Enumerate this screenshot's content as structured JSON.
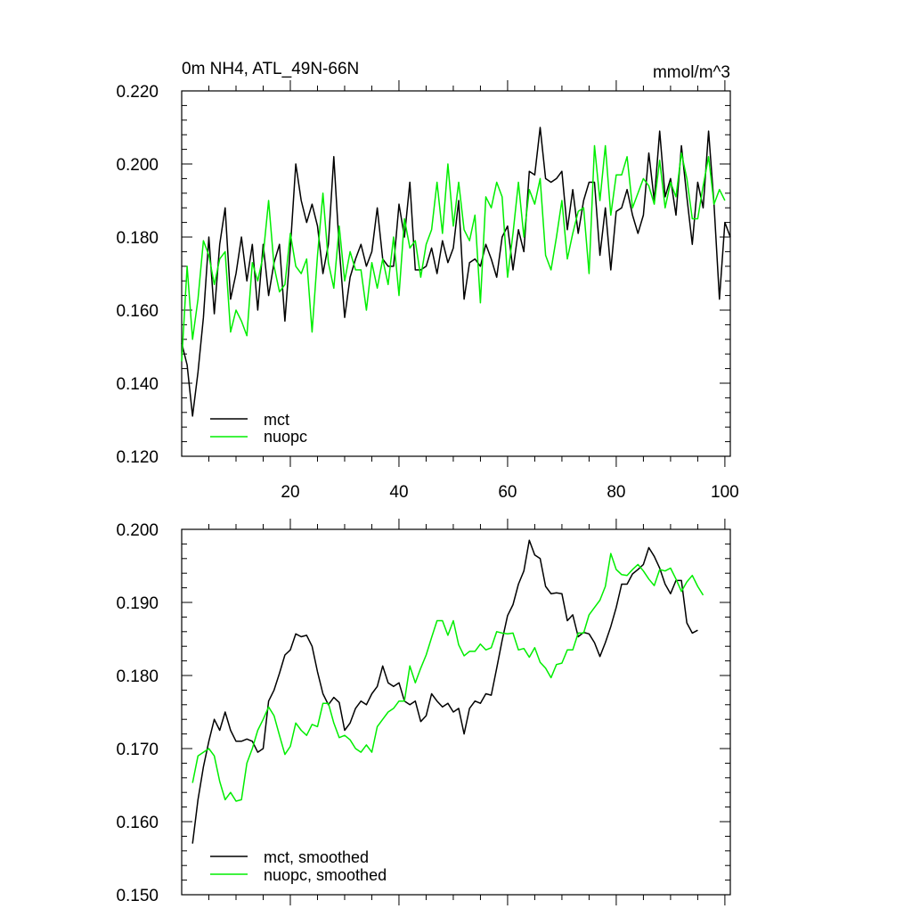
{
  "chart_data": [
    {
      "type": "line",
      "title": "0m NH4, ATL_49N-66N",
      "units": "mmol/m^3",
      "xlim": [
        0,
        101
      ],
      "ylim": [
        0.12,
        0.22
      ],
      "xticks": [
        20,
        40,
        60,
        80,
        100
      ],
      "xtick_labels": [
        "20",
        "40",
        "60",
        "80",
        "100"
      ],
      "yticks": [
        0.12,
        0.14,
        0.16,
        0.18,
        0.2,
        0.22
      ],
      "ytick_labels": [
        "0.120",
        "0.140",
        "0.160",
        "0.180",
        "0.200",
        "0.220"
      ],
      "legend_position": "bottom-left",
      "series": [
        {
          "name": "mct",
          "color": "#000000",
          "values": [
            0.151,
            0.145,
            0.131,
            0.143,
            0.158,
            0.18,
            0.159,
            0.178,
            0.188,
            0.163,
            0.17,
            0.18,
            0.168,
            0.178,
            0.16,
            0.178,
            0.164,
            0.173,
            0.178,
            0.157,
            0.177,
            0.2,
            0.19,
            0.184,
            0.189,
            0.183,
            0.17,
            0.178,
            0.202,
            0.177,
            0.158,
            0.169,
            0.174,
            0.178,
            0.172,
            0.176,
            0.188,
            0.174,
            0.172,
            0.172,
            0.189,
            0.18,
            0.195,
            0.171,
            0.171,
            0.172,
            0.177,
            0.17,
            0.179,
            0.173,
            0.177,
            0.19,
            0.163,
            0.173,
            0.174,
            0.172,
            0.178,
            0.174,
            0.169,
            0.18,
            0.183,
            0.171,
            0.182,
            0.176,
            0.198,
            0.197,
            0.21,
            0.196,
            0.195,
            0.196,
            0.198,
            0.182,
            0.193,
            0.181,
            0.19,
            0.195,
            0.195,
            0.175,
            0.188,
            0.171,
            0.187,
            0.188,
            0.193,
            0.186,
            0.181,
            0.186,
            0.203,
            0.19,
            0.209,
            0.191,
            0.196,
            0.186,
            0.205,
            0.191,
            0.178,
            0.195,
            0.188,
            0.209,
            0.189,
            0.163,
            0.184,
            0.18
          ]
        },
        {
          "name": "nuopc",
          "color": "#00ee00",
          "values": [
            0.146,
            0.172,
            0.152,
            0.163,
            0.179,
            0.175,
            0.167,
            0.174,
            0.176,
            0.154,
            0.16,
            0.157,
            0.153,
            0.173,
            0.168,
            0.175,
            0.19,
            0.172,
            0.165,
            0.167,
            0.181,
            0.172,
            0.17,
            0.174,
            0.154,
            0.175,
            0.192,
            0.173,
            0.166,
            0.183,
            0.168,
            0.176,
            0.171,
            0.171,
            0.16,
            0.173,
            0.166,
            0.174,
            0.167,
            0.18,
            0.164,
            0.185,
            0.177,
            0.179,
            0.169,
            0.178,
            0.182,
            0.195,
            0.181,
            0.2,
            0.183,
            0.195,
            0.182,
            0.179,
            0.186,
            0.162,
            0.191,
            0.188,
            0.195,
            0.191,
            0.169,
            0.181,
            0.195,
            0.18,
            0.193,
            0.189,
            0.196,
            0.175,
            0.171,
            0.18,
            0.19,
            0.174,
            0.181,
            0.187,
            0.188,
            0.17,
            0.205,
            0.19,
            0.205,
            0.186,
            0.197,
            0.197,
            0.202,
            0.188,
            0.192,
            0.196,
            0.194,
            0.189,
            0.201,
            0.188,
            0.195,
            0.191,
            0.203,
            0.196,
            0.185,
            0.185,
            0.194,
            0.202,
            0.189,
            0.193,
            0.19
          ]
        }
      ]
    },
    {
      "type": "line",
      "xlim": [
        0,
        101
      ],
      "ylim": [
        0.15,
        0.2
      ],
      "xticks": [
        20,
        40,
        60,
        80,
        100
      ],
      "yticks": [
        0.15,
        0.16,
        0.17,
        0.18,
        0.19,
        0.2
      ],
      "ytick_labels": [
        "0.150",
        "0.160",
        "0.170",
        "0.180",
        "0.190",
        "0.200"
      ],
      "legend_position": "bottom-left",
      "series": [
        {
          "name": "mct, smoothed",
          "color": "#000000",
          "values": [
            0.157,
            0.163,
            0.1675,
            0.171,
            0.174,
            0.1725,
            0.175,
            0.1725,
            0.171,
            0.171,
            0.1713,
            0.171,
            0.1695,
            0.17,
            0.1765,
            0.178,
            0.1803,
            0.1828,
            0.1835,
            0.1857,
            0.1853,
            0.1855,
            0.184,
            0.1805,
            0.1775,
            0.176,
            0.177,
            0.1763,
            0.1725,
            0.1735,
            0.1755,
            0.1765,
            0.176,
            0.1775,
            0.1785,
            0.1813,
            0.179,
            0.1785,
            0.179,
            0.1765,
            0.176,
            0.1765,
            0.1737,
            0.1745,
            0.1775,
            0.1765,
            0.1757,
            0.1762,
            0.175,
            0.1755,
            0.172,
            0.1755,
            0.1765,
            0.1762,
            0.1775,
            0.1773,
            0.181,
            0.1848,
            0.1882,
            0.1897,
            0.1925,
            0.1943,
            0.1985,
            0.1965,
            0.196,
            0.1922,
            0.1912,
            0.1913,
            0.1912,
            0.1875,
            0.1883,
            0.1853,
            0.1859,
            0.1857,
            0.1845,
            0.1826,
            0.1845,
            0.1867,
            0.1893,
            0.1925,
            0.1925,
            0.1939,
            0.1945,
            0.1952,
            0.1975,
            0.1963,
            0.1947,
            0.1925,
            0.1912,
            0.193,
            0.193,
            0.1872,
            0.1858,
            0.1862
          ]
        },
        {
          "name": "nuopc, smoothed",
          "color": "#00ee00",
          "values": [
            0.1653,
            0.169,
            0.1695,
            0.17,
            0.169,
            0.1655,
            0.163,
            0.164,
            0.1628,
            0.163,
            0.168,
            0.17,
            0.1725,
            0.174,
            0.1757,
            0.1745,
            0.1718,
            0.1692,
            0.1703,
            0.1735,
            0.1725,
            0.1718,
            0.1733,
            0.173,
            0.1762,
            0.1762,
            0.1735,
            0.1715,
            0.1718,
            0.1712,
            0.17,
            0.1695,
            0.1705,
            0.1695,
            0.173,
            0.174,
            0.175,
            0.1755,
            0.1765,
            0.1765,
            0.1813,
            0.179,
            0.181,
            0.1828,
            0.1852,
            0.1875,
            0.1875,
            0.1855,
            0.1875,
            0.1842,
            0.1827,
            0.1833,
            0.1833,
            0.1843,
            0.1835,
            0.1838,
            0.186,
            0.1858,
            0.1857,
            0.1858,
            0.1835,
            0.1837,
            0.1825,
            0.1838,
            0.1818,
            0.181,
            0.1797,
            0.1815,
            0.1817,
            0.1835,
            0.1835,
            0.1858,
            0.1858,
            0.1883,
            0.1893,
            0.1903,
            0.1922,
            0.1967,
            0.1945,
            0.1938,
            0.1937,
            0.1945,
            0.1952,
            0.1943,
            0.1932,
            0.1923,
            0.1945,
            0.1943,
            0.1947,
            0.1932,
            0.1915,
            0.1928,
            0.1937,
            0.1922,
            0.191
          ]
        }
      ]
    }
  ]
}
